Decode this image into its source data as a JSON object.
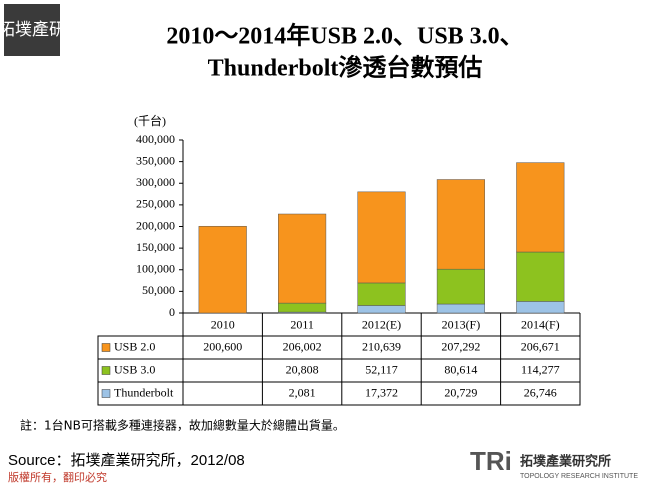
{
  "logo": "拓墣產研",
  "chart_data": {
    "type": "stacked-bar",
    "title": [
      "2010～2014年USB 2.0、USB 3.0、",
      "Thunderbolt滲透台數預估"
    ],
    "y_label": "(千台)",
    "categories": [
      "2010",
      "2011",
      "2012(E)",
      "2013(F)",
      "2014(F)"
    ],
    "series": [
      {
        "name": "USB 2.0",
        "color": "#f7941d",
        "values": [
          200600,
          206002,
          210639,
          207292,
          206671
        ],
        "value_labels": [
          "200,600",
          "206,002",
          "210,639",
          "207,292",
          "206,671"
        ]
      },
      {
        "name": "USB 3.0",
        "color": "#8dc21f",
        "values": [
          null,
          20808,
          52117,
          80614,
          114277
        ],
        "value_labels": [
          null,
          "20,808",
          "52,117",
          "80,614",
          "114,277"
        ]
      },
      {
        "name": "Thunderbolt",
        "color": "#9dc3e6",
        "values": [
          null,
          2081,
          17372,
          20729,
          26746
        ],
        "value_labels": [
          null,
          "2,081",
          "17,372",
          "20,729",
          "26,746"
        ]
      }
    ],
    "ylim": [
      0,
      400000
    ],
    "yticks": [
      0,
      {
        "value": 50000,
        "label": "50,000"
      },
      {
        "value": 100000,
        "label": "100,000"
      },
      {
        "value": 150000,
        "label": "150,000"
      },
      {
        "value": 200000,
        "label": "200,000"
      },
      {
        "value": 250000,
        "label": "250,000"
      },
      {
        "value": 300000,
        "label": "300,000"
      },
      {
        "value": 350000,
        "label": "350,000"
      },
      {
        "value": 400000,
        "label": "400,000"
      }
    ]
  },
  "note": "註：1台NB可搭載多種連接器，故加總數量大於總體出貨量。",
  "source": "Source：拓墣產業研究所，2012/08",
  "copyright": "版權所有，翻印必究",
  "brand": {
    "name": "拓墣產業研究所",
    "sub": "TOPOLOGY RESEARCH INSTITUTE"
  }
}
